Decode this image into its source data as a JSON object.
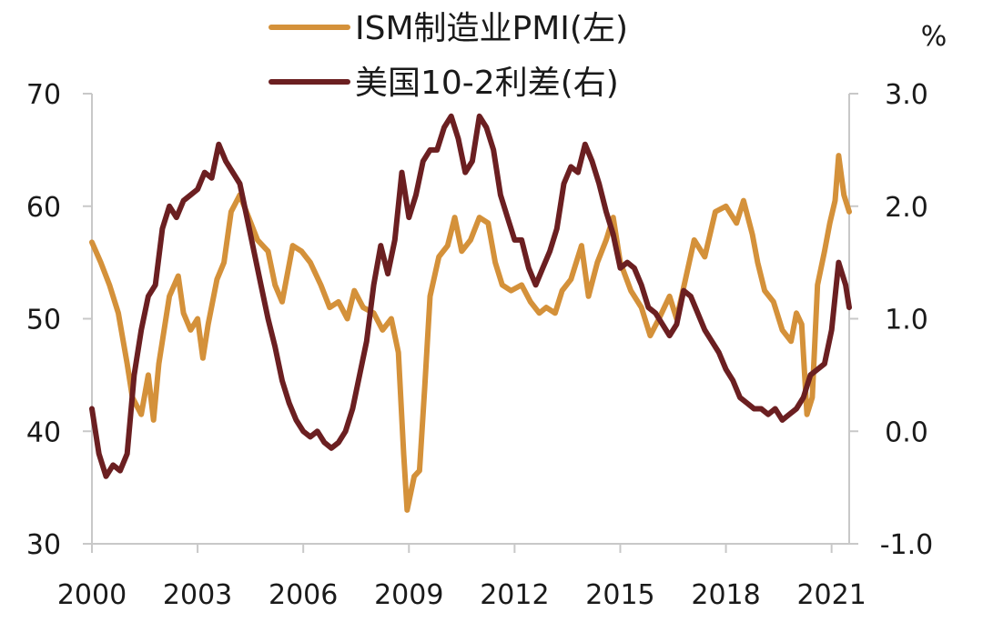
{
  "chart_data": {
    "type": "line",
    "title": "",
    "left_axis": {
      "ylim": [
        30,
        70
      ],
      "ticks": [
        "30",
        "40",
        "50",
        "60",
        "70"
      ]
    },
    "right_axis": {
      "unit": "%",
      "ylim": [
        -1.0,
        3.0
      ],
      "ticks": [
        "-1.0",
        "0.0",
        "1.0",
        "2.0",
        "3.0"
      ]
    },
    "x_axis": {
      "xlim": [
        2000.0,
        2021.5
      ],
      "ticks": [
        "2000",
        "2003",
        "2006",
        "2009",
        "2012",
        "2015",
        "2018",
        "2021"
      ]
    },
    "legend": {
      "placement": "top-left"
    },
    "series": [
      {
        "name": "ISM制造业PMI(左)",
        "axis": "left",
        "color": "#D4913A",
        "points": [
          [
            2000.0,
            56.8
          ],
          [
            2000.25,
            55.0
          ],
          [
            2000.5,
            53.0
          ],
          [
            2000.75,
            50.5
          ],
          [
            2001.0,
            46.0
          ],
          [
            2001.15,
            43.0
          ],
          [
            2001.4,
            41.5
          ],
          [
            2001.6,
            45.0
          ],
          [
            2001.75,
            41.0
          ],
          [
            2001.9,
            46.0
          ],
          [
            2002.2,
            52.0
          ],
          [
            2002.45,
            53.8
          ],
          [
            2002.6,
            50.5
          ],
          [
            2002.8,
            49.0
          ],
          [
            2003.0,
            50.0
          ],
          [
            2003.15,
            46.5
          ],
          [
            2003.3,
            49.5
          ],
          [
            2003.55,
            53.5
          ],
          [
            2003.75,
            55.0
          ],
          [
            2003.95,
            59.5
          ],
          [
            2004.2,
            61.0
          ],
          [
            2004.45,
            59.0
          ],
          [
            2004.7,
            57.0
          ],
          [
            2005.0,
            56.0
          ],
          [
            2005.2,
            53.0
          ],
          [
            2005.4,
            51.5
          ],
          [
            2005.7,
            56.5
          ],
          [
            2005.95,
            56.0
          ],
          [
            2006.2,
            55.0
          ],
          [
            2006.5,
            53.0
          ],
          [
            2006.75,
            51.0
          ],
          [
            2007.0,
            51.5
          ],
          [
            2007.25,
            50.0
          ],
          [
            2007.45,
            52.5
          ],
          [
            2007.7,
            51.0
          ],
          [
            2008.0,
            50.5
          ],
          [
            2008.25,
            49.0
          ],
          [
            2008.5,
            50.0
          ],
          [
            2008.7,
            47.0
          ],
          [
            2008.85,
            38.0
          ],
          [
            2008.95,
            33.0
          ],
          [
            2009.15,
            36.0
          ],
          [
            2009.3,
            36.5
          ],
          [
            2009.45,
            44.0
          ],
          [
            2009.6,
            52.0
          ],
          [
            2009.85,
            55.5
          ],
          [
            2010.1,
            56.5
          ],
          [
            2010.3,
            59.0
          ],
          [
            2010.5,
            56.0
          ],
          [
            2010.75,
            57.0
          ],
          [
            2011.0,
            59.0
          ],
          [
            2011.25,
            58.5
          ],
          [
            2011.45,
            55.0
          ],
          [
            2011.65,
            53.0
          ],
          [
            2011.9,
            52.5
          ],
          [
            2012.2,
            53.0
          ],
          [
            2012.45,
            51.5
          ],
          [
            2012.7,
            50.5
          ],
          [
            2012.9,
            51.0
          ],
          [
            2013.15,
            50.5
          ],
          [
            2013.35,
            52.5
          ],
          [
            2013.6,
            53.5
          ],
          [
            2013.9,
            56.5
          ],
          [
            2014.1,
            52.0
          ],
          [
            2014.35,
            55.0
          ],
          [
            2014.6,
            57.0
          ],
          [
            2014.8,
            59.0
          ],
          [
            2015.0,
            55.0
          ],
          [
            2015.3,
            52.5
          ],
          [
            2015.6,
            51.0
          ],
          [
            2015.85,
            48.5
          ],
          [
            2016.1,
            50.0
          ],
          [
            2016.4,
            52.0
          ],
          [
            2016.6,
            50.0
          ],
          [
            2016.85,
            53.5
          ],
          [
            2017.1,
            57.0
          ],
          [
            2017.4,
            55.5
          ],
          [
            2017.7,
            59.5
          ],
          [
            2018.0,
            60.0
          ],
          [
            2018.3,
            58.5
          ],
          [
            2018.5,
            60.5
          ],
          [
            2018.75,
            57.5
          ],
          [
            2018.9,
            55.0
          ],
          [
            2019.1,
            52.5
          ],
          [
            2019.35,
            51.5
          ],
          [
            2019.6,
            49.0
          ],
          [
            2019.85,
            48.0
          ],
          [
            2020.0,
            50.5
          ],
          [
            2020.15,
            49.5
          ],
          [
            2020.3,
            41.5
          ],
          [
            2020.45,
            43.0
          ],
          [
            2020.6,
            53.0
          ],
          [
            2020.8,
            56.0
          ],
          [
            2020.95,
            58.5
          ],
          [
            2021.1,
            60.5
          ],
          [
            2021.2,
            64.5
          ],
          [
            2021.35,
            61.0
          ],
          [
            2021.5,
            59.5
          ]
        ]
      },
      {
        "name": "美国10-2利差(右)",
        "axis": "right",
        "color": "#6B1F21",
        "points": [
          [
            2000.0,
            0.2
          ],
          [
            2000.2,
            -0.2
          ],
          [
            2000.4,
            -0.4
          ],
          [
            2000.6,
            -0.3
          ],
          [
            2000.8,
            -0.35
          ],
          [
            2001.0,
            -0.2
          ],
          [
            2001.2,
            0.5
          ],
          [
            2001.4,
            0.9
          ],
          [
            2001.6,
            1.2
          ],
          [
            2001.8,
            1.3
          ],
          [
            2002.0,
            1.8
          ],
          [
            2002.2,
            2.0
          ],
          [
            2002.4,
            1.9
          ],
          [
            2002.6,
            2.05
          ],
          [
            2002.8,
            2.1
          ],
          [
            2003.0,
            2.15
          ],
          [
            2003.2,
            2.3
          ],
          [
            2003.4,
            2.25
          ],
          [
            2003.6,
            2.55
          ],
          [
            2003.8,
            2.4
          ],
          [
            2004.0,
            2.3
          ],
          [
            2004.2,
            2.2
          ],
          [
            2004.4,
            1.9
          ],
          [
            2004.6,
            1.6
          ],
          [
            2004.8,
            1.3
          ],
          [
            2005.0,
            1.0
          ],
          [
            2005.2,
            0.75
          ],
          [
            2005.4,
            0.45
          ],
          [
            2005.6,
            0.25
          ],
          [
            2005.8,
            0.1
          ],
          [
            2006.0,
            0.0
          ],
          [
            2006.2,
            -0.05
          ],
          [
            2006.4,
            0.0
          ],
          [
            2006.6,
            -0.1
          ],
          [
            2006.8,
            -0.15
          ],
          [
            2007.0,
            -0.1
          ],
          [
            2007.2,
            0.0
          ],
          [
            2007.4,
            0.2
          ],
          [
            2007.6,
            0.5
          ],
          [
            2007.8,
            0.8
          ],
          [
            2008.0,
            1.3
          ],
          [
            2008.2,
            1.65
          ],
          [
            2008.4,
            1.4
          ],
          [
            2008.6,
            1.7
          ],
          [
            2008.8,
            2.3
          ],
          [
            2009.0,
            1.9
          ],
          [
            2009.2,
            2.1
          ],
          [
            2009.4,
            2.4
          ],
          [
            2009.6,
            2.5
          ],
          [
            2009.8,
            2.5
          ],
          [
            2010.0,
            2.7
          ],
          [
            2010.2,
            2.8
          ],
          [
            2010.4,
            2.6
          ],
          [
            2010.6,
            2.3
          ],
          [
            2010.8,
            2.4
          ],
          [
            2011.0,
            2.8
          ],
          [
            2011.2,
            2.7
          ],
          [
            2011.4,
            2.5
          ],
          [
            2011.6,
            2.1
          ],
          [
            2011.8,
            1.9
          ],
          [
            2012.0,
            1.7
          ],
          [
            2012.2,
            1.7
          ],
          [
            2012.4,
            1.45
          ],
          [
            2012.6,
            1.3
          ],
          [
            2012.8,
            1.45
          ],
          [
            2013.0,
            1.6
          ],
          [
            2013.2,
            1.8
          ],
          [
            2013.4,
            2.2
          ],
          [
            2013.6,
            2.35
          ],
          [
            2013.8,
            2.3
          ],
          [
            2014.0,
            2.55
          ],
          [
            2014.2,
            2.4
          ],
          [
            2014.4,
            2.2
          ],
          [
            2014.6,
            1.95
          ],
          [
            2014.8,
            1.75
          ],
          [
            2015.0,
            1.45
          ],
          [
            2015.2,
            1.5
          ],
          [
            2015.4,
            1.45
          ],
          [
            2015.6,
            1.3
          ],
          [
            2015.8,
            1.1
          ],
          [
            2016.0,
            1.05
          ],
          [
            2016.2,
            0.95
          ],
          [
            2016.4,
            0.85
          ],
          [
            2016.6,
            0.95
          ],
          [
            2016.8,
            1.25
          ],
          [
            2017.0,
            1.2
          ],
          [
            2017.2,
            1.05
          ],
          [
            2017.4,
            0.9
          ],
          [
            2017.6,
            0.8
          ],
          [
            2017.8,
            0.7
          ],
          [
            2018.0,
            0.55
          ],
          [
            2018.2,
            0.45
          ],
          [
            2018.4,
            0.3
          ],
          [
            2018.6,
            0.25
          ],
          [
            2018.8,
            0.2
          ],
          [
            2019.0,
            0.2
          ],
          [
            2019.2,
            0.15
          ],
          [
            2019.4,
            0.2
          ],
          [
            2019.6,
            0.1
          ],
          [
            2019.8,
            0.15
          ],
          [
            2020.0,
            0.2
          ],
          [
            2020.2,
            0.3
          ],
          [
            2020.4,
            0.5
          ],
          [
            2020.6,
            0.55
          ],
          [
            2020.8,
            0.6
          ],
          [
            2021.0,
            0.9
          ],
          [
            2021.2,
            1.5
          ],
          [
            2021.4,
            1.3
          ],
          [
            2021.5,
            1.1
          ]
        ]
      }
    ]
  }
}
